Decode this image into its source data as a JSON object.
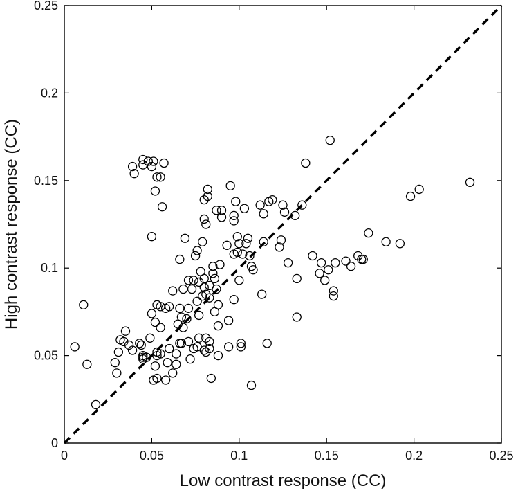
{
  "chart_data": {
    "type": "scatter",
    "xlabel": "Low contrast response (CC)",
    "ylabel": "High contrast response (CC)",
    "xlim": [
      0,
      0.25
    ],
    "ylim": [
      0,
      0.25
    ],
    "xticks": [
      "0",
      "0.05",
      "0.1",
      "0.15",
      "0.2",
      "0.25"
    ],
    "yticks": [
      "0",
      "0.05",
      "0.1",
      "0.15",
      "0.2",
      "0.25"
    ],
    "tick_values": [
      0,
      0.05,
      0.1,
      0.15,
      0.2,
      0.25
    ],
    "grid": false,
    "marker": "open-circle",
    "reference_line": {
      "style": "dashed",
      "from": [
        0,
        0
      ],
      "to": [
        0.25,
        0.25
      ],
      "color": "#000000"
    },
    "points": [
      [
        0.006,
        0.055
      ],
      [
        0.011,
        0.079
      ],
      [
        0.013,
        0.045
      ],
      [
        0.018,
        0.022
      ],
      [
        0.029,
        0.046
      ],
      [
        0.03,
        0.04
      ],
      [
        0.031,
        0.052
      ],
      [
        0.032,
        0.059
      ],
      [
        0.034,
        0.058
      ],
      [
        0.035,
        0.064
      ],
      [
        0.037,
        0.056
      ],
      [
        0.039,
        0.053
      ],
      [
        0.039,
        0.158
      ],
      [
        0.04,
        0.154
      ],
      [
        0.043,
        0.057
      ],
      [
        0.044,
        0.056
      ],
      [
        0.045,
        0.05
      ],
      [
        0.045,
        0.048
      ],
      [
        0.045,
        0.049
      ],
      [
        0.045,
        0.162
      ],
      [
        0.045,
        0.159
      ],
      [
        0.047,
        0.049
      ],
      [
        0.048,
        0.161
      ],
      [
        0.049,
        0.06
      ],
      [
        0.05,
        0.074
      ],
      [
        0.05,
        0.118
      ],
      [
        0.05,
        0.158
      ],
      [
        0.051,
        0.036
      ],
      [
        0.051,
        0.161
      ],
      [
        0.052,
        0.044
      ],
      [
        0.052,
        0.069
      ],
      [
        0.052,
        0.144
      ],
      [
        0.053,
        0.037
      ],
      [
        0.053,
        0.05
      ],
      [
        0.053,
        0.052
      ],
      [
        0.053,
        0.079
      ],
      [
        0.053,
        0.152
      ],
      [
        0.055,
        0.051
      ],
      [
        0.055,
        0.066
      ],
      [
        0.055,
        0.078
      ],
      [
        0.055,
        0.152
      ],
      [
        0.056,
        0.135
      ],
      [
        0.057,
        0.16
      ],
      [
        0.058,
        0.036
      ],
      [
        0.058,
        0.077
      ],
      [
        0.059,
        0.046
      ],
      [
        0.06,
        0.054
      ],
      [
        0.06,
        0.078
      ],
      [
        0.062,
        0.04
      ],
      [
        0.062,
        0.087
      ],
      [
        0.064,
        0.045
      ],
      [
        0.064,
        0.051
      ],
      [
        0.065,
        0.068
      ],
      [
        0.066,
        0.057
      ],
      [
        0.066,
        0.077
      ],
      [
        0.066,
        0.105
      ],
      [
        0.067,
        0.057
      ],
      [
        0.067,
        0.072
      ],
      [
        0.068,
        0.066
      ],
      [
        0.068,
        0.088
      ],
      [
        0.069,
        0.117
      ],
      [
        0.07,
        0.071
      ],
      [
        0.071,
        0.058
      ],
      [
        0.071,
        0.077
      ],
      [
        0.071,
        0.093
      ],
      [
        0.072,
        0.048
      ],
      [
        0.073,
        0.088
      ],
      [
        0.074,
        0.054
      ],
      [
        0.074,
        0.093
      ],
      [
        0.075,
        0.107
      ],
      [
        0.076,
        0.055
      ],
      [
        0.076,
        0.081
      ],
      [
        0.076,
        0.11
      ],
      [
        0.077,
        0.06
      ],
      [
        0.077,
        0.092
      ],
      [
        0.077,
        0.073
      ],
      [
        0.078,
        0.098
      ],
      [
        0.079,
        0.084
      ],
      [
        0.079,
        0.115
      ],
      [
        0.08,
        0.053
      ],
      [
        0.08,
        0.089
      ],
      [
        0.08,
        0.094
      ],
      [
        0.08,
        0.128
      ],
      [
        0.08,
        0.139
      ],
      [
        0.081,
        0.052
      ],
      [
        0.081,
        0.06
      ],
      [
        0.081,
        0.085
      ],
      [
        0.081,
        0.125
      ],
      [
        0.082,
        0.141
      ],
      [
        0.082,
        0.145
      ],
      [
        0.083,
        0.054
      ],
      [
        0.083,
        0.058
      ],
      [
        0.083,
        0.083
      ],
      [
        0.083,
        0.09
      ],
      [
        0.084,
        0.037
      ],
      [
        0.085,
        0.097
      ],
      [
        0.085,
        0.101
      ],
      [
        0.086,
        0.094
      ],
      [
        0.086,
        0.075
      ],
      [
        0.087,
        0.133
      ],
      [
        0.087,
        0.088
      ],
      [
        0.088,
        0.05
      ],
      [
        0.088,
        0.067
      ],
      [
        0.088,
        0.079
      ],
      [
        0.089,
        0.102
      ],
      [
        0.09,
        0.129
      ],
      [
        0.09,
        0.133
      ],
      [
        0.093,
        0.113
      ],
      [
        0.094,
        0.055
      ],
      [
        0.094,
        0.07
      ],
      [
        0.095,
        0.147
      ],
      [
        0.097,
        0.082
      ],
      [
        0.097,
        0.108
      ],
      [
        0.097,
        0.13
      ],
      [
        0.097,
        0.127
      ],
      [
        0.098,
        0.138
      ],
      [
        0.099,
        0.109
      ],
      [
        0.099,
        0.118
      ],
      [
        0.1,
        0.093
      ],
      [
        0.1,
        0.114
      ],
      [
        0.101,
        0.055
      ],
      [
        0.101,
        0.057
      ],
      [
        0.102,
        0.108
      ],
      [
        0.103,
        0.134
      ],
      [
        0.104,
        0.114
      ],
      [
        0.105,
        0.117
      ],
      [
        0.106,
        0.107
      ],
      [
        0.107,
        0.101
      ],
      [
        0.107,
        0.033
      ],
      [
        0.108,
        0.099
      ],
      [
        0.112,
        0.136
      ],
      [
        0.113,
        0.085
      ],
      [
        0.114,
        0.115
      ],
      [
        0.114,
        0.131
      ],
      [
        0.116,
        0.057
      ],
      [
        0.117,
        0.138
      ],
      [
        0.119,
        0.139
      ],
      [
        0.123,
        0.112
      ],
      [
        0.124,
        0.116
      ],
      [
        0.125,
        0.136
      ],
      [
        0.126,
        0.132
      ],
      [
        0.128,
        0.103
      ],
      [
        0.132,
        0.13
      ],
      [
        0.133,
        0.094
      ],
      [
        0.133,
        0.072
      ],
      [
        0.136,
        0.136
      ],
      [
        0.138,
        0.16
      ],
      [
        0.142,
        0.107
      ],
      [
        0.146,
        0.097
      ],
      [
        0.147,
        0.103
      ],
      [
        0.149,
        0.093
      ],
      [
        0.151,
        0.099
      ],
      [
        0.152,
        0.173
      ],
      [
        0.154,
        0.087
      ],
      [
        0.154,
        0.084
      ],
      [
        0.155,
        0.103
      ],
      [
        0.161,
        0.104
      ],
      [
        0.164,
        0.101
      ],
      [
        0.168,
        0.107
      ],
      [
        0.17,
        0.105
      ],
      [
        0.171,
        0.105
      ],
      [
        0.174,
        0.12
      ],
      [
        0.184,
        0.115
      ],
      [
        0.192,
        0.114
      ],
      [
        0.198,
        0.141
      ],
      [
        0.203,
        0.145
      ],
      [
        0.232,
        0.149
      ]
    ]
  }
}
